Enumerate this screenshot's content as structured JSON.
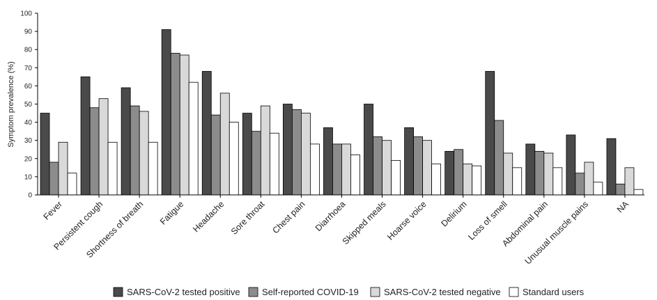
{
  "chart_data": {
    "type": "bar",
    "title": "",
    "xlabel": "",
    "ylabel": "Symptom prevalence (%)",
    "ylim": [
      0,
      100
    ],
    "yticks": [
      0,
      10,
      20,
      30,
      40,
      50,
      60,
      70,
      80,
      90,
      100
    ],
    "grid": false,
    "legend_position": "bottom",
    "categories": [
      "Fever",
      "Persistent cough",
      "Shortness of breath",
      "Fatigue",
      "Headache",
      "Sore throat",
      "Chest pain",
      "Diarrhoea",
      "Skipped meals",
      "Hoarse voice",
      "Delirium",
      "Loss of smell",
      "Abdominal pain",
      "Unusual muscle pains",
      "NA"
    ],
    "series": [
      {
        "name": "SARS-CoV-2 tested positive",
        "color": "#4a4a4a",
        "values": [
          45,
          65,
          59,
          91,
          68,
          45,
          50,
          37,
          50,
          37,
          24,
          68,
          28,
          33,
          31
        ]
      },
      {
        "name": "Self-reported COVID-19",
        "color": "#8c8c8c",
        "values": [
          18,
          48,
          49,
          78,
          44,
          35,
          47,
          28,
          32,
          32,
          25,
          41,
          24,
          12,
          6
        ]
      },
      {
        "name": "SARS-CoV-2 tested negative",
        "color": "#d9d9d9",
        "values": [
          29,
          53,
          46,
          77,
          56,
          49,
          45,
          28,
          30,
          30,
          17,
          23,
          23,
          18,
          15
        ]
      },
      {
        "name": "Standard users",
        "color": "#ffffff",
        "values": [
          12,
          29,
          29,
          62,
          40,
          34,
          28,
          22,
          19,
          17,
          16,
          15,
          15,
          7,
          3
        ]
      }
    ]
  }
}
